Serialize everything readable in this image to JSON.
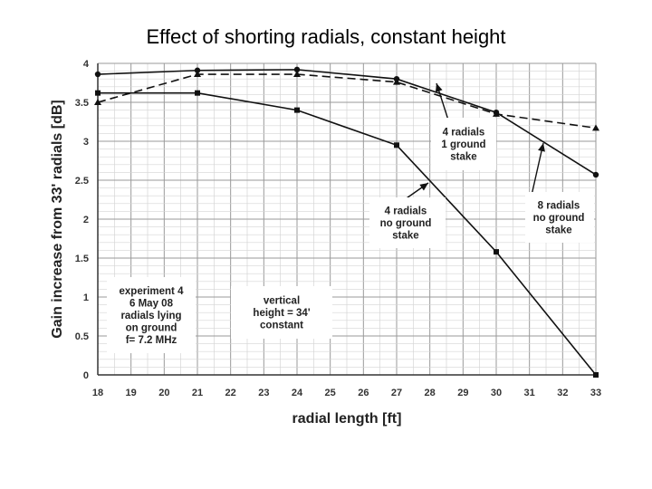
{
  "title": "Effect of shorting radials, constant height",
  "chart_data": {
    "type": "line",
    "xlabel": "radial length [ft]",
    "ylabel": "Gain increase from 33' radials [dB]",
    "xlim": [
      18,
      33
    ],
    "ylim": [
      0,
      4
    ],
    "x_ticks": [
      "18",
      "19",
      "20",
      "21",
      "22",
      "23",
      "24",
      "25",
      "26",
      "27",
      "28",
      "29",
      "30",
      "31",
      "32",
      "33"
    ],
    "y_ticks": [
      "0",
      "0.5",
      "1",
      "1.5",
      "2",
      "2.5",
      "3",
      "3.5",
      "4"
    ],
    "grid": true,
    "series": [
      {
        "name": "8 radials no ground stake",
        "marker": "circle",
        "dash": "solid",
        "x": [
          18,
          21,
          24,
          27,
          30,
          33
        ],
        "y": [
          3.86,
          3.91,
          3.92,
          3.8,
          3.37,
          2.57
        ]
      },
      {
        "name": "4 radials 1 ground stake",
        "marker": "triangle",
        "dash": "dashed",
        "x": [
          18,
          21,
          24,
          27,
          30,
          33
        ],
        "y": [
          3.5,
          3.86,
          3.86,
          3.76,
          3.35,
          3.17
        ]
      },
      {
        "name": "4 radials no ground stake",
        "marker": "square",
        "dash": "solid",
        "x": [
          18,
          21,
          24,
          27,
          30,
          33
        ],
        "y": [
          3.62,
          3.62,
          3.4,
          2.95,
          1.58,
          0.0
        ]
      }
    ],
    "annotations": [
      {
        "lines": [
          "4 radials",
          "1 ground",
          "stake"
        ]
      },
      {
        "lines": [
          "4 radials",
          "no ground",
          "stake"
        ]
      },
      {
        "lines": [
          "8 radials",
          "no ground",
          "stake"
        ]
      },
      {
        "lines": [
          "experiment 4",
          "6 May 08",
          "radials lying",
          "on ground",
          "f= 7.2 MHz"
        ]
      },
      {
        "lines": [
          "vertical",
          "height = 34'",
          "constant"
        ]
      }
    ]
  }
}
